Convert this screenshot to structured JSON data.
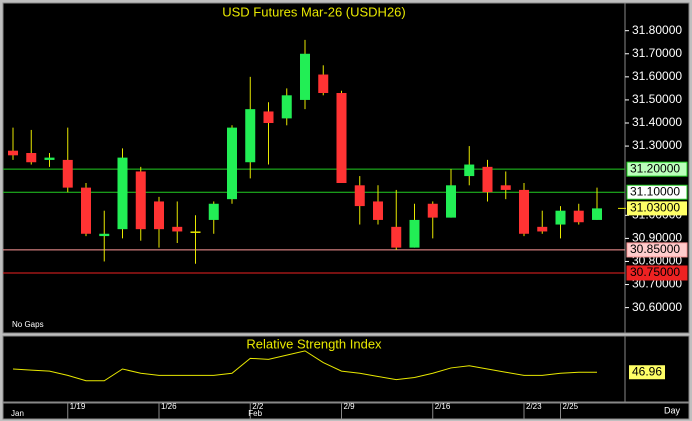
{
  "chart_data": {
    "type": "candlestick",
    "title": "USD Futures Mar-26 (USDH26)",
    "note": "No Gaps",
    "open": [
      31.28,
      31.27,
      31.24,
      31.24,
      31.12,
      30.91,
      30.94,
      31.19,
      31.06,
      30.95,
      30.93,
      30.98,
      31.07,
      31.23,
      31.45,
      31.42,
      31.5,
      31.61,
      31.53,
      31.13,
      31.06,
      30.95,
      30.86,
      31.05,
      30.99,
      31.17,
      31.21,
      31.13,
      31.11,
      30.95,
      30.96,
      31.02,
      30.98
    ],
    "high": [
      31.38,
      31.37,
      31.27,
      31.38,
      31.14,
      31.02,
      31.29,
      31.21,
      31.08,
      31.06,
      31.0,
      31.06,
      31.39,
      31.6,
      31.49,
      31.55,
      31.76,
      31.65,
      31.54,
      31.17,
      31.13,
      31.11,
      31.05,
      31.06,
      31.2,
      31.3,
      31.24,
      31.19,
      31.14,
      31.02,
      31.04,
      31.05,
      31.12
    ],
    "low": [
      31.24,
      31.22,
      31.21,
      31.1,
      30.91,
      30.8,
      30.9,
      30.89,
      30.86,
      30.88,
      30.79,
      30.92,
      31.05,
      31.16,
      31.22,
      31.39,
      31.46,
      31.52,
      31.14,
      30.96,
      30.96,
      30.85,
      30.86,
      30.9,
      30.99,
      31.13,
      31.06,
      31.07,
      30.91,
      30.92,
      30.9,
      30.96,
      30.98
    ],
    "close": [
      31.26,
      31.23,
      31.25,
      31.12,
      30.92,
      30.92,
      31.25,
      30.94,
      30.94,
      30.93,
      30.93,
      31.05,
      31.38,
      31.46,
      31.4,
      31.52,
      31.7,
      31.53,
      31.14,
      31.04,
      30.98,
      30.86,
      30.98,
      30.99,
      31.13,
      31.22,
      31.1,
      31.11,
      30.92,
      30.93,
      31.02,
      30.97,
      31.03
    ],
    "up_color": "#22ee55",
    "down_color": "#ff3333",
    "doji_color": "#e8e800",
    "wick_color": "#e8e800",
    "ylim": [
      30.49,
      31.92
    ],
    "yticks": [
      {
        "value": 31.8,
        "label": "31.80000"
      },
      {
        "value": 31.7,
        "label": "31.70000"
      },
      {
        "value": 31.6,
        "label": "31.60000"
      },
      {
        "value": 31.5,
        "label": "31.50000"
      },
      {
        "value": 31.4,
        "label": "31.40000"
      },
      {
        "value": 31.3,
        "label": "31.30000"
      },
      {
        "value": 31.0,
        "label": "31.00000"
      },
      {
        "value": 30.9,
        "label": "30.90000"
      },
      {
        "value": 30.8,
        "label": "30.80000"
      },
      {
        "value": 30.7,
        "label": "30.70000"
      },
      {
        "value": 30.6,
        "label": "30.60000"
      }
    ],
    "hlines": [
      {
        "value": 31.2,
        "label": "31.20000",
        "color": "#22cc22",
        "label_bg": "#bbffbb"
      },
      {
        "value": 31.1,
        "label": "31.10000",
        "color": "#22cc22",
        "label_bg": "#ffffff"
      },
      {
        "value": 30.85,
        "label": "30.85000",
        "color": "#ff9999",
        "label_bg": "#ffcccc"
      },
      {
        "value": 30.75,
        "label": "30.75000",
        "color": "#ee2222",
        "label_bg": "#ee2222"
      }
    ],
    "last_price": {
      "value": 31.03,
      "label": "31.03000",
      "label_bg": "#ffff66"
    },
    "xticks": [
      {
        "value": 3,
        "label": "1/19"
      },
      {
        "value": 8,
        "label": "1/26"
      },
      {
        "value": 13,
        "label": "2/2"
      },
      {
        "value": 18,
        "label": "2/9"
      },
      {
        "value": 23,
        "label": "2/16"
      },
      {
        "value": 28,
        "label": "2/23"
      },
      {
        "value": 30,
        "label": "2/25"
      }
    ],
    "months": [
      {
        "value": 0,
        "label": "Jan"
      },
      {
        "value": 13,
        "label": "Feb"
      }
    ],
    "x_label": "Day",
    "rsi": {
      "title": "Relative Strength Index",
      "color": "#e8e800",
      "ylim": [
        20,
        80
      ],
      "values": [
        50,
        49,
        48,
        44,
        39,
        39,
        50,
        46,
        44,
        44,
        44,
        44,
        46,
        60,
        59,
        63,
        67,
        56,
        48,
        46,
        43,
        40,
        42,
        46,
        51,
        53,
        50,
        47,
        44,
        44,
        46,
        47,
        46.96
      ],
      "last": 46.96,
      "label_bg": "#ffff66"
    }
  }
}
